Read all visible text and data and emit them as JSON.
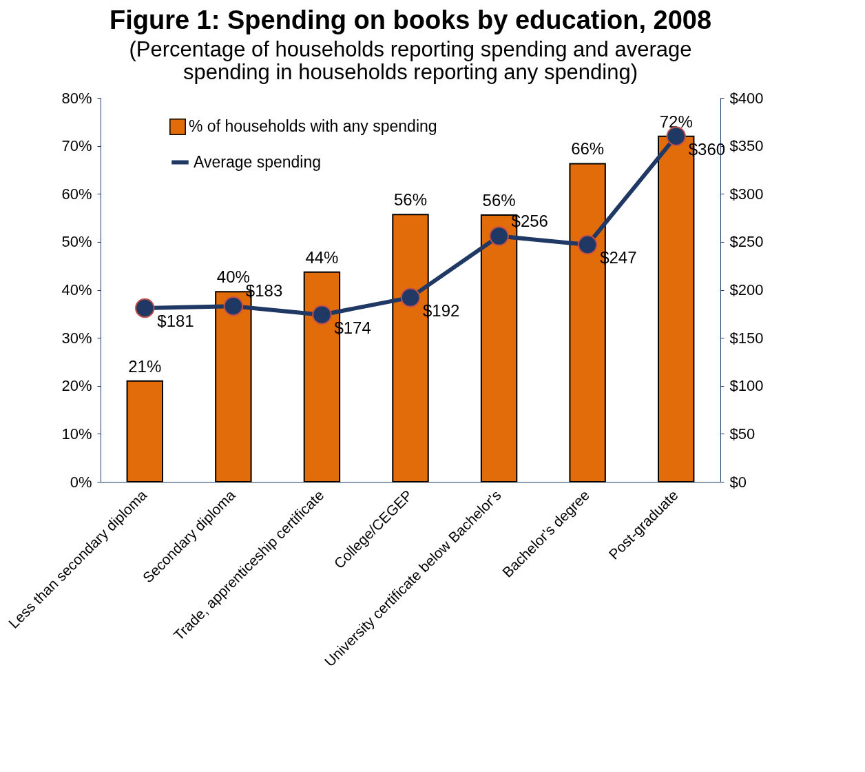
{
  "chart_data": {
    "type": "bar",
    "title": "Figure 1: Spending on books by education, 2008",
    "subtitle": "(Percentage of households reporting spending and average spending in households reporting any spending)",
    "categories": [
      "Less than secondary diploma",
      "Secondary diploma",
      "Trade, apprenticeship certificate",
      "College/CEGEP",
      "University certificate below Bachelor's",
      "Bachelor's degree",
      "Post-graduate"
    ],
    "series": [
      {
        "name": "% of households with any spending",
        "color": "#e36c0a",
        "values": [
          21,
          39.6,
          43.7,
          55.7,
          55.6,
          66.3,
          72
        ],
        "value_labels": [
          "21%",
          "40%",
          "44%",
          "56%",
          "56%",
          "66%",
          "72%"
        ]
      },
      {
        "name": "Average spending",
        "type": "line",
        "axis": "y2",
        "color": "#1f3864",
        "marker": "circle",
        "values": [
          181,
          183,
          174,
          192,
          256,
          247,
          360
        ],
        "value_labels": [
          "$181",
          "$183",
          "$174",
          "$192",
          "$256",
          "$247",
          "$360"
        ]
      }
    ],
    "ylim": [
      0,
      80
    ],
    "yticks": [
      {
        "value": 0,
        "label": "0%"
      },
      {
        "value": 10,
        "label": "10%"
      },
      {
        "value": 20,
        "label": "20%"
      },
      {
        "value": 30,
        "label": "30%"
      },
      {
        "value": 40,
        "label": "40%"
      },
      {
        "value": 50,
        "label": "50%"
      },
      {
        "value": 60,
        "label": "60%"
      },
      {
        "value": 70,
        "label": "70%"
      },
      {
        "value": 80,
        "label": "80%"
      }
    ],
    "y2lim": [
      0,
      400
    ],
    "y2ticks": [
      {
        "value": 0,
        "label": "$0"
      },
      {
        "value": 50,
        "label": "$50"
      },
      {
        "value": 100,
        "label": "$100"
      },
      {
        "value": 150,
        "label": "$150"
      },
      {
        "value": 200,
        "label": "$200"
      },
      {
        "value": 250,
        "label": "$250"
      },
      {
        "value": 300,
        "label": "$300"
      },
      {
        "value": 350,
        "label": "$350"
      },
      {
        "value": 400,
        "label": "$400"
      }
    ],
    "grid": false,
    "legend": "top left"
  }
}
